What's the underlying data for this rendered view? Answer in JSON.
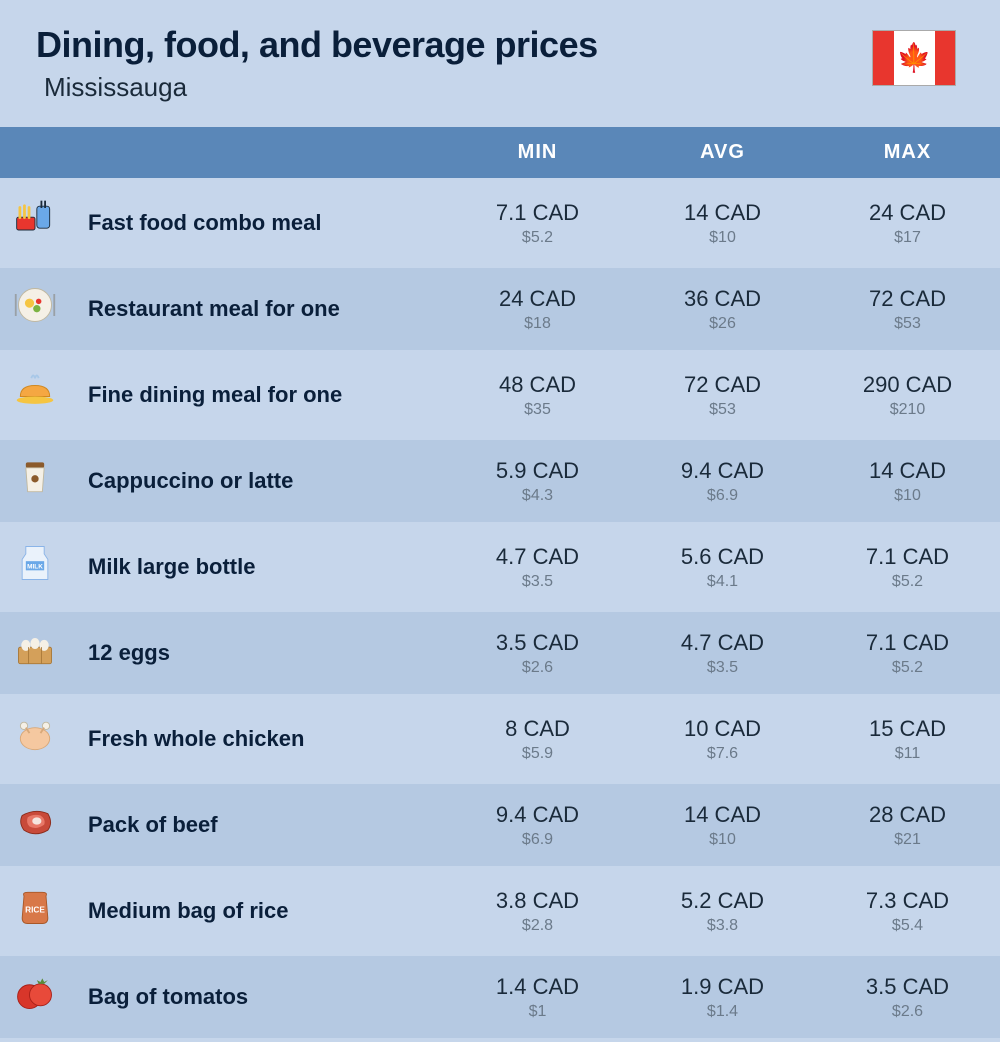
{
  "header": {
    "title": "Dining, food, and beverage prices",
    "subtitle": "Mississauga",
    "flag_color_side": "#e8362e",
    "flag_color_mid": "#ffffff",
    "flag_glyph": "🍁"
  },
  "table": {
    "columns": [
      "MIN",
      "AVG",
      "MAX"
    ],
    "header_bg": "#5a87b8",
    "header_fg": "#ffffff",
    "row_even_bg": "#c6d6eb",
    "row_odd_bg": "#b5c9e2",
    "cad_color": "#1a2a3a",
    "usd_color": "#6b7a8a",
    "rows": [
      {
        "icon": "fast-food-icon",
        "label": "Fast food combo meal",
        "min_cad": "7.1 CAD",
        "min_usd": "$5.2",
        "avg_cad": "14 CAD",
        "avg_usd": "$10",
        "max_cad": "24 CAD",
        "max_usd": "$17"
      },
      {
        "icon": "restaurant-meal-icon",
        "label": "Restaurant meal for one",
        "min_cad": "24 CAD",
        "min_usd": "$18",
        "avg_cad": "36 CAD",
        "avg_usd": "$26",
        "max_cad": "72 CAD",
        "max_usd": "$53"
      },
      {
        "icon": "fine-dining-icon",
        "label": "Fine dining meal for one",
        "min_cad": "48 CAD",
        "min_usd": "$35",
        "avg_cad": "72 CAD",
        "avg_usd": "$53",
        "max_cad": "290 CAD",
        "max_usd": "$210"
      },
      {
        "icon": "coffee-cup-icon",
        "label": "Cappuccino or latte",
        "min_cad": "5.9 CAD",
        "min_usd": "$4.3",
        "avg_cad": "9.4 CAD",
        "avg_usd": "$6.9",
        "max_cad": "14 CAD",
        "max_usd": "$10"
      },
      {
        "icon": "milk-bottle-icon",
        "label": "Milk large bottle",
        "min_cad": "4.7 CAD",
        "min_usd": "$3.5",
        "avg_cad": "5.6 CAD",
        "avg_usd": "$4.1",
        "max_cad": "7.1 CAD",
        "max_usd": "$5.2"
      },
      {
        "icon": "eggs-icon",
        "label": "12 eggs",
        "min_cad": "3.5 CAD",
        "min_usd": "$2.6",
        "avg_cad": "4.7 CAD",
        "avg_usd": "$3.5",
        "max_cad": "7.1 CAD",
        "max_usd": "$5.2"
      },
      {
        "icon": "chicken-icon",
        "label": "Fresh whole chicken",
        "min_cad": "8 CAD",
        "min_usd": "$5.9",
        "avg_cad": "10 CAD",
        "avg_usd": "$7.6",
        "max_cad": "15 CAD",
        "max_usd": "$11"
      },
      {
        "icon": "beef-icon",
        "label": "Pack of beef",
        "min_cad": "9.4 CAD",
        "min_usd": "$6.9",
        "avg_cad": "14 CAD",
        "avg_usd": "$10",
        "max_cad": "28 CAD",
        "max_usd": "$21"
      },
      {
        "icon": "rice-bag-icon",
        "label": "Medium bag of rice",
        "min_cad": "3.8 CAD",
        "min_usd": "$2.8",
        "avg_cad": "5.2 CAD",
        "avg_usd": "$3.8",
        "max_cad": "7.3 CAD",
        "max_usd": "$5.4"
      },
      {
        "icon": "tomato-icon",
        "label": "Bag of tomatos",
        "min_cad": "1.4 CAD",
        "min_usd": "$1",
        "avg_cad": "1.9 CAD",
        "avg_usd": "$1.4",
        "max_cad": "3.5 CAD",
        "max_usd": "$2.6"
      }
    ]
  },
  "icons": {
    "fast-food-icon": "<svg viewBox='0 0 48 48'><rect x='26' y='10' width='14' height='24' rx='3' fill='#6aa8e8' stroke='#1a2a3a'/><rect x='30' y='4' width='2' height='8' fill='#1a2a3a'/><rect x='34' y='4' width='2' height='8' fill='#1a2a3a'/><rect x='4' y='22' width='20' height='14' rx='2' fill='#e8362e' stroke='#1a2a3a'/><rect x='6' y='10' width='3' height='14' rx='1.5' fill='#f5c542'/><rect x='11' y='8' width='3' height='16' rx='1.5' fill='#f5c542'/><rect x='16' y='10' width='3' height='14' rx='1.5' fill='#f5c542'/></svg>",
    "restaurant-meal-icon": "<svg viewBox='0 0 48 48'><circle cx='24' cy='24' r='18' fill='#f5f0e6' stroke='#c0b8a0'/><circle cx='18' cy='22' r='5' fill='#f5c542'/><circle cx='28' cy='20' r='3' fill='#e8362e'/><circle cx='26' cy='28' r='4' fill='#7cb342'/><rect x='2' y='12' width='2' height='24' fill='#9aa0a6'/><rect x='44' y='12' width='2' height='24' fill='#9aa0a6'/></svg>",
    "fine-dining-icon": "<svg viewBox='0 0 48 48'><path d='M8 30 Q8 18 24 18 Q40 18 40 30 Z' fill='#f5a742' stroke='#d08820'/><ellipse cx='24' cy='34' rx='20' ry='4' fill='#f5c542'/><path d='M20 10 Q22 4 24 10 M24 10 Q26 4 28 10' stroke='#a8c8e8' stroke-width='2' fill='none'/></svg>",
    "coffee-cup-icon": "<svg viewBox='0 0 48 48'><rect x='14' y='8' width='20' height='6' rx='2' fill='#8b5a2b'/><path d='M14 14 L16 40 L32 40 L34 14 Z' fill='#f5f0e6' stroke='#c0b8a0'/><circle cx='24' cy='26' r='4' fill='#8b5a2b'/></svg>",
    "milk-bottle-icon": "<svg viewBox='0 0 48 48'><path d='M14 6 L34 6 L34 14 L38 20 L38 42 L10 42 L10 20 L14 14 Z' fill='#eaf2fb' stroke='#8ab4e8'/><rect x='14' y='22' width='20' height='10' fill='#6aa8e8'/><text x='24' y='30' font-size='7' fill='#fff' text-anchor='middle' font-weight='bold'>MILK</text></svg>",
    "eggs-icon": "<svg viewBox='0 0 48 48'><rect x='6' y='22' width='36' height='18' rx='2' fill='#d4a05a' stroke='#a87838'/><ellipse cx='14' cy='20' rx='5' ry='6' fill='#f5f0e6'/><ellipse cx='24' cy='18' rx='5' ry='6' fill='#f5f0e6'/><ellipse cx='34' cy='20' rx='5' ry='6' fill='#f5f0e6'/><line x1='17' y1='22' x2='17' y2='40' stroke='#a87838'/><line x1='31' y1='22' x2='31' y2='40' stroke='#a87838'/></svg>",
    "chicken-icon": "<svg viewBox='0 0 48 48'><ellipse cx='24' cy='28' rx='16' ry='12' fill='#f5c8a0' stroke='#d8a878'/><circle cx='12' cy='14' r='4' fill='#f5f0e6' stroke='#c0b8a0'/><circle cx='36' cy='14' r='4' fill='#f5f0e6' stroke='#c0b8a0'/><line x1='14' y1='16' x2='18' y2='22' stroke='#d8a878' stroke-width='2'/><line x1='34' y1='16' x2='30' y2='22' stroke='#d8a878' stroke-width='2'/></svg>",
    "beef-icon": "<svg viewBox='0 0 48 48'><path d='M10 18 Q6 26 12 34 Q24 42 38 34 Q44 26 38 16 Q24 10 10 18 Z' fill='#c84a3a' stroke='#8b2a1a'/><path d='M16 20 Q14 26 18 30 Q26 34 34 28 Q36 22 30 18 Q22 16 16 20 Z' fill='#e87868'/><ellipse cx='26' cy='24' rx='5' ry='4' fill='#f5e6e0'/></svg>",
    "rice-bag-icon": "<svg viewBox='0 0 48 48'><path d='M12 12 Q10 8 16 8 L32 8 Q38 8 36 12 L38 36 Q38 42 32 42 L16 42 Q10 42 10 36 Z' fill='#d87848' stroke='#a85828'/><text x='24' y='30' font-size='9' fill='#fff' text-anchor='middle' font-weight='bold'>RICE</text></svg>",
    "tomato-icon": "<svg viewBox='0 0 48 48'><circle cx='18' cy='28' r='13' fill='#d8362a' stroke='#a82018'/><circle cx='30' cy='26' r='12' fill='#e84a3a' stroke='#a82018'/><path d='M28 14 L26 10 L30 12 L32 8 L34 12 L38 10 L34 14' fill='#5a8a3a'/></svg>"
  }
}
